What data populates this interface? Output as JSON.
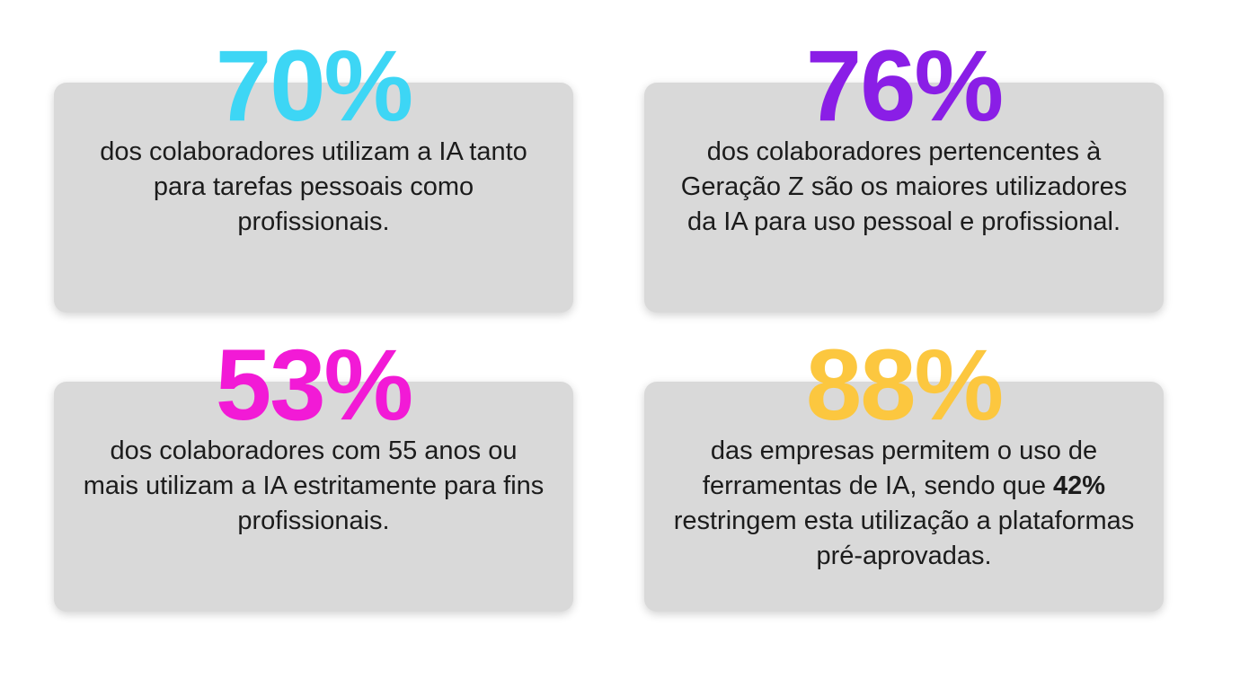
{
  "stats": [
    {
      "value": "70%",
      "color": "#3dd6f5",
      "description": "dos colaboradores utilizam a IA tanto para tarefas pessoais como profissionais."
    },
    {
      "value": "76%",
      "color": "#8a1ee6",
      "description": "dos colaboradores pertencentes à Geração Z são os maiores utilizadores da IA para uso pessoal e profissional."
    },
    {
      "value": "53%",
      "color": "#f21ad6",
      "description": "dos colaboradores com 55 anos ou mais utilizam a IA estritamente para fins profissionais."
    },
    {
      "value": "88%",
      "color": "#fcc73f",
      "description_before": "das empresas permitem o uso de ferramentas de IA, sendo que",
      "description_highlight": "42%",
      "description_after": "restringem esta utilização a plataformas pré-aprovadas."
    }
  ]
}
